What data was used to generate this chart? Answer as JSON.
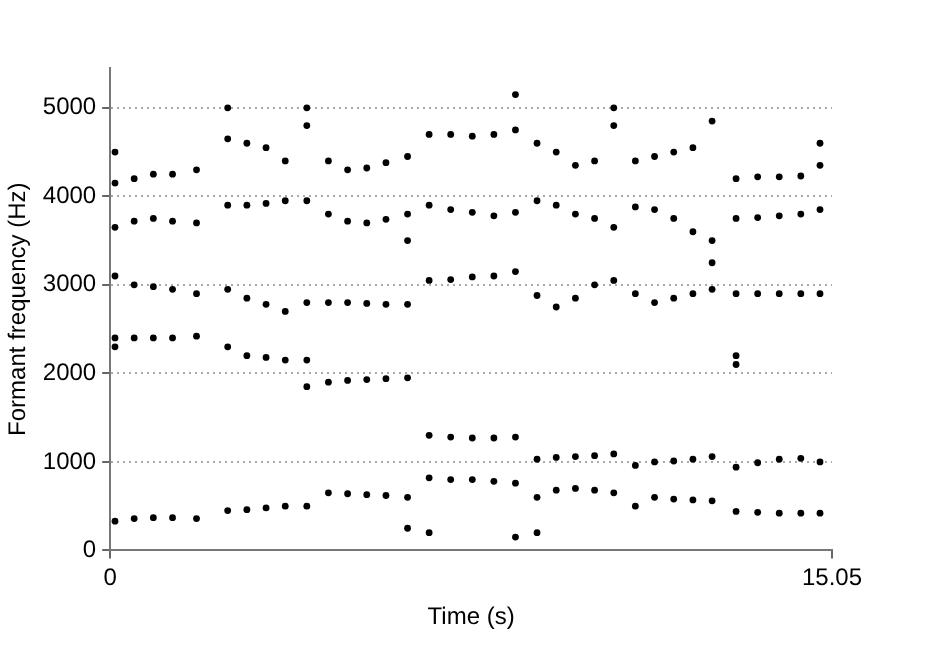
{
  "chart_data": {
    "type": "scatter",
    "xlabel": "Time (s)",
    "ylabel": "Formant frequency (Hz)",
    "xlim": [
      0,
      15.05
    ],
    "xticks": [
      0,
      15.05
    ],
    "ylim": [
      0,
      5450
    ],
    "yticks": [
      0,
      1000,
      2000,
      3000,
      4000,
      5000
    ],
    "grid": "y",
    "legend": false,
    "marker": "circle",
    "series": [
      {
        "color": "#000000",
        "x": [
          0.1,
          0.5,
          0.9,
          1.3,
          1.8,
          0.1,
          0.5,
          0.9,
          1.3,
          1.8,
          0.1,
          0.5,
          0.9,
          1.3,
          1.8,
          0.1,
          0.5,
          0.9,
          1.3,
          1.8,
          0.1,
          0.5,
          0.9,
          1.3,
          1.8,
          2.45,
          2.85,
          3.25,
          3.65,
          4.1,
          2.45,
          2.85,
          3.25,
          3.65,
          4.1,
          2.45,
          2.85,
          3.25,
          3.65,
          4.1,
          2.45,
          2.85,
          3.25,
          3.65,
          4.1,
          2.45,
          2.85,
          3.25,
          3.65,
          4.1,
          4.55,
          4.95,
          5.35,
          5.75,
          6.2,
          4.55,
          4.95,
          5.35,
          5.75,
          6.2,
          4.55,
          4.95,
          5.35,
          5.75,
          6.2,
          4.55,
          4.95,
          5.35,
          5.75,
          6.2,
          4.55,
          4.95,
          5.35,
          5.75,
          6.2,
          6.65,
          7.1,
          7.55,
          8.0,
          8.45,
          6.65,
          7.1,
          7.55,
          8.0,
          8.45,
          6.65,
          7.1,
          7.55,
          8.0,
          8.45,
          6.65,
          7.1,
          7.55,
          8.0,
          8.45,
          6.65,
          7.1,
          7.55,
          8.0,
          8.45,
          8.9,
          9.3,
          9.7,
          10.1,
          10.5,
          8.9,
          9.3,
          9.7,
          10.1,
          10.5,
          8.9,
          9.3,
          9.7,
          10.1,
          10.5,
          8.9,
          9.3,
          9.7,
          10.1,
          10.5,
          8.9,
          9.3,
          9.7,
          10.1,
          10.5,
          10.95,
          11.35,
          11.75,
          12.15,
          12.55,
          10.95,
          11.35,
          11.75,
          12.15,
          12.55,
          10.95,
          11.35,
          11.75,
          12.15,
          12.55,
          10.95,
          11.35,
          11.75,
          12.15,
          12.55,
          10.95,
          11.35,
          11.75,
          12.15,
          12.55,
          13.05,
          13.5,
          13.95,
          14.4,
          14.8,
          13.05,
          13.5,
          13.95,
          14.4,
          14.8,
          13.05,
          13.5,
          13.95,
          14.4,
          14.8,
          13.05,
          13.5,
          13.95,
          14.4,
          14.8,
          13.05,
          13.5,
          13.95,
          14.4,
          14.8,
          0.1,
          0.1,
          2.45,
          4.1,
          4.1,
          6.2,
          6.2,
          6.65,
          8.45,
          8.45,
          8.9,
          10.5,
          12.55,
          13.05,
          13.05,
          14.8
        ],
        "values": [
          330,
          360,
          370,
          370,
          360,
          2400,
          2400,
          2400,
          2400,
          2420,
          3100,
          3000,
          2980,
          2950,
          2900,
          3650,
          3720,
          3750,
          3720,
          3700,
          4150,
          4200,
          4250,
          4250,
          4300,
          450,
          460,
          480,
          500,
          500,
          2300,
          2200,
          2180,
          2150,
          2150,
          2950,
          2850,
          2780,
          2700,
          2800,
          3900,
          3900,
          3920,
          3950,
          3950,
          4650,
          4600,
          4550,
          4400,
          4800,
          650,
          640,
          630,
          620,
          600,
          1900,
          1920,
          1930,
          1940,
          1950,
          2800,
          2800,
          2790,
          2780,
          2780,
          3800,
          3720,
          3700,
          3740,
          3800,
          4400,
          4300,
          4320,
          4380,
          4450,
          820,
          800,
          800,
          780,
          760,
          1300,
          1280,
          1270,
          1270,
          1280,
          3050,
          3060,
          3090,
          3100,
          3150,
          3900,
          3850,
          3820,
          3780,
          3820,
          4700,
          4700,
          4680,
          4700,
          4750,
          600,
          680,
          700,
          680,
          650,
          1030,
          1050,
          1060,
          1070,
          1090,
          2880,
          2750,
          2850,
          3000,
          3050,
          3950,
          3900,
          3800,
          3750,
          3650,
          4600,
          4500,
          4350,
          4400,
          4800,
          500,
          600,
          580,
          570,
          560,
          960,
          1000,
          1010,
          1030,
          1060,
          2900,
          2800,
          2850,
          2900,
          2950,
          3880,
          3850,
          3750,
          3600,
          3500,
          4400,
          4450,
          4500,
          4550,
          4850,
          440,
          430,
          420,
          420,
          420,
          940,
          990,
          1030,
          1040,
          1000,
          2900,
          2900,
          2900,
          2900,
          2900,
          3750,
          3760,
          3780,
          3800,
          3850,
          4200,
          4220,
          4220,
          4230,
          4350,
          4500,
          2300,
          5000,
          5000,
          1850,
          3500,
          250,
          200,
          5150,
          150,
          200,
          5000,
          3250,
          2200,
          2100,
          4600
        ]
      }
    ]
  }
}
